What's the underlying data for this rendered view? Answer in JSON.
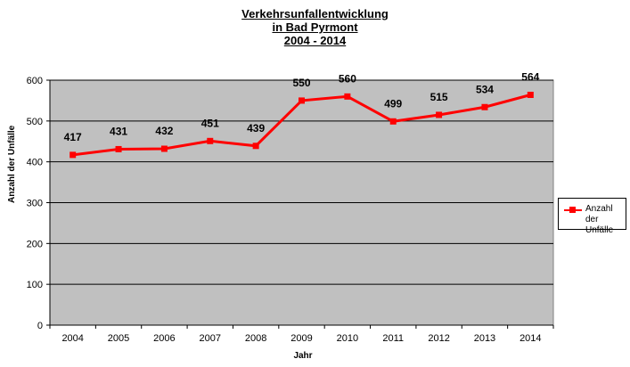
{
  "title": {
    "line1": "Verkehrsunfallentwicklung",
    "line2": "in Bad Pyrmont",
    "line3": "2004 - 2014"
  },
  "chart_data": {
    "type": "line",
    "categories": [
      "2004",
      "2005",
      "2006",
      "2007",
      "2008",
      "2009",
      "2010",
      "2011",
      "2012",
      "2013",
      "2014"
    ],
    "series": [
      {
        "name": "Anzahl der Unfälle",
        "values": [
          417,
          431,
          432,
          451,
          439,
          550,
          560,
          499,
          515,
          534,
          564
        ]
      }
    ],
    "xlabel": "Jahr",
    "ylabel": "Anzahl  der Unfälle",
    "ylim": [
      0,
      600
    ],
    "yticks": [
      0,
      100,
      200,
      300,
      400,
      500,
      600
    ],
    "grid": true,
    "legend_position": "right",
    "plot_background": "#c0c0c0",
    "series_color": "#ff0000"
  },
  "legend": {
    "line1": "Anzahl",
    "line2": "der Unfälle"
  }
}
